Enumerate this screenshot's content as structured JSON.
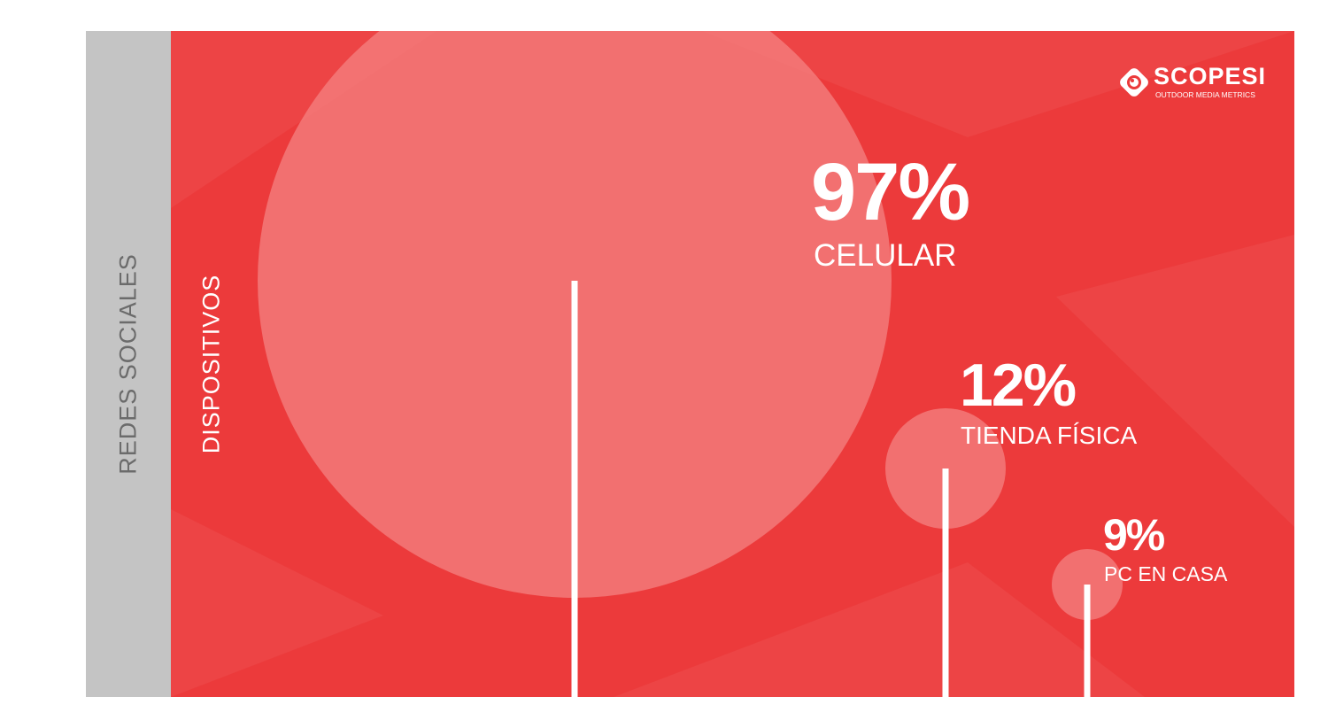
{
  "tabs": {
    "inactive": "REDES SOCIALES",
    "active": "DISPOSITIVOS"
  },
  "logo": {
    "name": "SCOPESI",
    "tagline": "OUTDOOR MEDIA METRICS"
  },
  "colors": {
    "background": "#ec3a3b",
    "bubble": "#f37a7a",
    "tab": "#c4c4c4",
    "text": "#ffffff"
  },
  "chart_data": {
    "type": "scatter",
    "points": [
      {
        "label": "CELULAR",
        "value": 97,
        "display": "97%"
      },
      {
        "label": "TIENDA FÍSICA",
        "value": 12,
        "display": "12%"
      },
      {
        "label": "PC EN CASA",
        "value": 9,
        "display": "9%"
      }
    ]
  }
}
